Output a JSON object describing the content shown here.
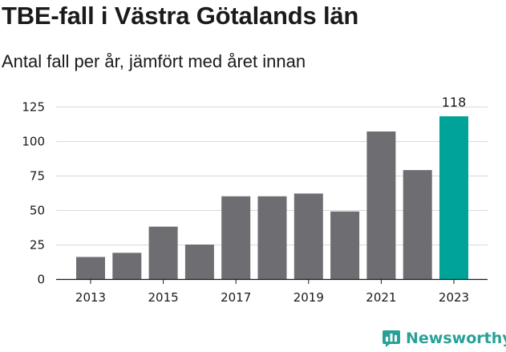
{
  "title": "TBE-fall i Västra Götalands län",
  "subtitle": "Antal fall per år, jämfört med året innan",
  "brand": {
    "name": "Newsworthy",
    "icon": "bar-chart-icon",
    "color": "#2aa198"
  },
  "chart_data": {
    "type": "bar",
    "categories": [
      "2013",
      "2014",
      "2015",
      "2016",
      "2017",
      "2018",
      "2019",
      "2020",
      "2021",
      "2022",
      "2023"
    ],
    "values": [
      16,
      19,
      38,
      25,
      60,
      60,
      62,
      49,
      107,
      79,
      118
    ],
    "x_tick_labels": [
      "2013",
      "2015",
      "2017",
      "2019",
      "2021",
      "2023"
    ],
    "y_ticks": [
      0,
      25,
      50,
      75,
      100,
      125
    ],
    "ylim": [
      0,
      125
    ],
    "grid": true,
    "colors": {
      "default": "#6e6d72",
      "highlight": "#00a398"
    },
    "highlight_index": 10,
    "annotations": [
      {
        "category": "2023",
        "label": "118"
      }
    ]
  }
}
